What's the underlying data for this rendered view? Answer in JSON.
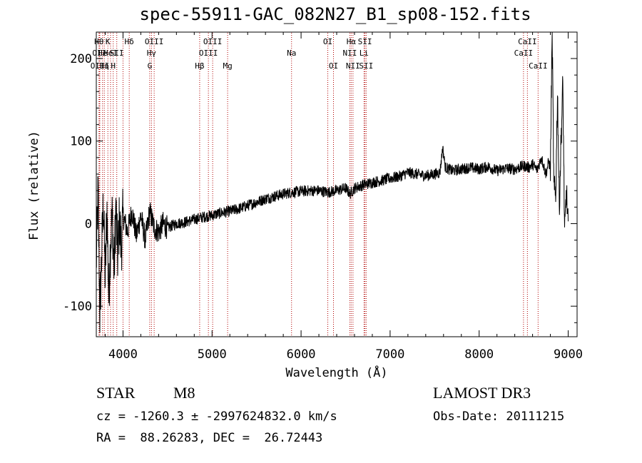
{
  "chart_data": {
    "type": "line",
    "title": "spec-55911-GAC_082N27_B1_sp08-152.fits",
    "xlabel": "Wavelength (Å)",
    "ylabel": "Flux (relative)",
    "xlim": [
      3700,
      9100
    ],
    "ylim": [
      -137,
      232
    ],
    "xticks": [
      4000,
      5000,
      6000,
      7000,
      8000,
      9000
    ],
    "yticks": [
      -100,
      0,
      100,
      200
    ],
    "grid": false,
    "series": [
      {
        "color": "#000000",
        "x": [
          3700,
          3720,
          3740,
          3760,
          3780,
          3800,
          3820,
          3840,
          3860,
          3880,
          3900,
          3920,
          3940,
          3960,
          3980,
          4000,
          4050,
          4100,
          4150,
          4200,
          4250,
          4300,
          4350,
          4400,
          4450,
          4500,
          4600,
          4700,
          4800,
          4900,
          5000,
          5100,
          5200,
          5300,
          5400,
          5500,
          5600,
          5700,
          5800,
          5900,
          6000,
          6100,
          6200,
          6300,
          6400,
          6500,
          6550,
          6600,
          6700,
          6800,
          6900,
          7000,
          7100,
          7200,
          7300,
          7400,
          7500,
          7560,
          7590,
          7620,
          7700,
          7800,
          7900,
          8000,
          8100,
          8200,
          8300,
          8400,
          8500,
          8560,
          8600,
          8650,
          8700,
          8750,
          8780,
          8800,
          8820,
          8840,
          8860,
          8880,
          8900,
          8920,
          8940,
          8960,
          8980,
          9000
        ],
        "y": [
          -50,
          40,
          -110,
          -40,
          30,
          -70,
          20,
          -90,
          -20,
          10,
          -60,
          20,
          -40,
          5,
          -30,
          10,
          -10,
          15,
          -15,
          10,
          -20,
          15,
          -5,
          -10,
          0,
          -5,
          0,
          2,
          5,
          8,
          10,
          13,
          15,
          18,
          22,
          26,
          30,
          33,
          36,
          38,
          39,
          40,
          40,
          38,
          40,
          43,
          36,
          43,
          47,
          50,
          52,
          55,
          57,
          62,
          60,
          58,
          60,
          62,
          92,
          68,
          64,
          66,
          68,
          66,
          69,
          64,
          67,
          66,
          70,
          68,
          72,
          65,
          80,
          60,
          75,
          68,
          230,
          40,
          35,
          160,
          20,
          100,
          170,
          -15,
          40,
          -5
        ]
      }
    ],
    "annotations": {
      "line_color": "#b00000",
      "lines": [
        {
          "x": 3730,
          "label": "Hθ",
          "row": 1
        },
        {
          "x": 3735,
          "label": "OII",
          "row": 2
        },
        {
          "x": 3740,
          "label": "OIII",
          "row": 3
        },
        {
          "x": 3770,
          "label": "He",
          "row": 2
        },
        {
          "x": 3790,
          "label": "Hη",
          "row": 3
        },
        {
          "x": 3830,
          "label": "K",
          "row": 1
        },
        {
          "x": 3860,
          "label": "HeI",
          "row": 2
        },
        {
          "x": 3890,
          "label": "H",
          "row": 3
        },
        {
          "x": 3930,
          "label": "SII",
          "row": 2
        },
        {
          "x": 4000,
          "label": "",
          "row": 0
        },
        {
          "x": 4070,
          "label": "Hδ",
          "row": 1
        },
        {
          "x": 4300,
          "label": "G",
          "row": 3
        },
        {
          "x": 4320,
          "label": "Hγ",
          "row": 2
        },
        {
          "x": 4350,
          "label": "OIII",
          "row": 1
        },
        {
          "x": 4861,
          "label": "Hβ",
          "row": 3
        },
        {
          "x": 4959,
          "label": "OIII",
          "row": 2
        },
        {
          "x": 5007,
          "label": "OIII",
          "row": 1
        },
        {
          "x": 5175,
          "label": "Mg",
          "row": 3
        },
        {
          "x": 5893,
          "label": "Na",
          "row": 2
        },
        {
          "x": 6300,
          "label": "OI",
          "row": 1
        },
        {
          "x": 6364,
          "label": "OI",
          "row": 3
        },
        {
          "x": 6548,
          "label": "NII",
          "row": 2
        },
        {
          "x": 6563,
          "label": "Hα",
          "row": 1
        },
        {
          "x": 6583,
          "label": "NII",
          "row": 3
        },
        {
          "x": 6707,
          "label": "Li",
          "row": 2
        },
        {
          "x": 6717,
          "label": "SII",
          "row": 1
        },
        {
          "x": 6731,
          "label": "SII",
          "row": 3
        },
        {
          "x": 8498,
          "label": "CaII",
          "row": 2
        },
        {
          "x": 8542,
          "label": "CaII",
          "row": 1
        },
        {
          "x": 8662,
          "label": "CaII",
          "row": 3
        }
      ]
    }
  },
  "info": {
    "class": "STAR",
    "subclass": "M8",
    "survey": "LAMOST DR3",
    "cz": "cz = -1260.3 ± -2997624832.0 km/s",
    "obs_date": "Obs-Date: 20111215",
    "coords": "RA =  88.26283, DEC =  26.72443"
  }
}
